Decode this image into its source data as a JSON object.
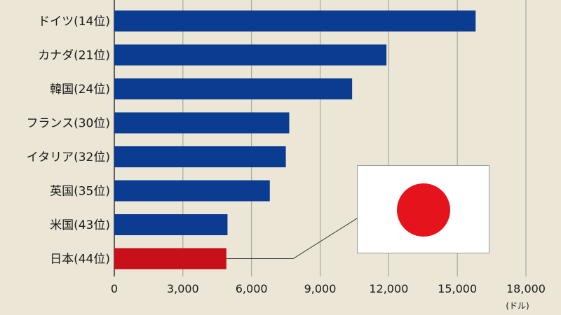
{
  "chart_data": {
    "type": "bar",
    "orientation": "horizontal",
    "categories": [
      "ドイツ(14位)",
      "カナダ(21位)",
      "韓国(24位)",
      "フランス(30位)",
      "イタリア(32位)",
      "英国(35位)",
      "米国(43位)",
      "日本(44位)"
    ],
    "values": [
      15800,
      11900,
      10400,
      7650,
      7500,
      6800,
      4950,
      4900
    ],
    "highlight_category": "日本(44位)",
    "xlim": [
      0,
      18000
    ],
    "x_ticks": [
      0,
      3000,
      6000,
      9000,
      12000,
      15000,
      18000
    ],
    "x_tick_labels": [
      "0",
      "3,000",
      "6,000",
      "9,000",
      "12,000",
      "15,000",
      "18,000"
    ],
    "unit_label": "(ドル)",
    "grid": true,
    "colors": {
      "background": "#ece6d7",
      "bar": "#0a3c91",
      "highlight_bar": "#c8101a",
      "grid": "#9a9a9a",
      "text": "#1a1a1a"
    }
  },
  "inset": {
    "icon": "japan-flag-icon",
    "colors": {
      "field": "#ffffff",
      "sun": "#e5131b"
    }
  }
}
